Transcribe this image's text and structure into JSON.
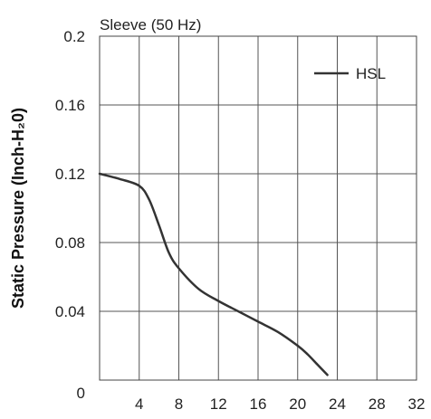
{
  "chart_data": {
    "type": "line",
    "title": "Sleeve (50 Hz)",
    "ylabel": "Static Pressure (Inch-H₂0)",
    "xlabel": "",
    "xlim": [
      0,
      32
    ],
    "ylim": [
      0,
      0.2
    ],
    "xticks": [
      "4",
      "8",
      "12",
      "16",
      "20",
      "24",
      "28",
      "32"
    ],
    "yticks": [
      "0",
      "0.04",
      "0.08",
      "0.12",
      "0.16",
      "0.2"
    ],
    "grid": true,
    "legend_position": "top-right",
    "series": [
      {
        "name": "HSL",
        "color": "#333333",
        "x": [
          0,
          2,
          4,
          5,
          6,
          7,
          8,
          10,
          12,
          14,
          16,
          18,
          20,
          21,
          22,
          23
        ],
        "y": [
          0.12,
          0.117,
          0.113,
          0.105,
          0.09,
          0.074,
          0.065,
          0.053,
          0.046,
          0.04,
          0.034,
          0.028,
          0.02,
          0.015,
          0.009,
          0.003
        ]
      }
    ]
  }
}
